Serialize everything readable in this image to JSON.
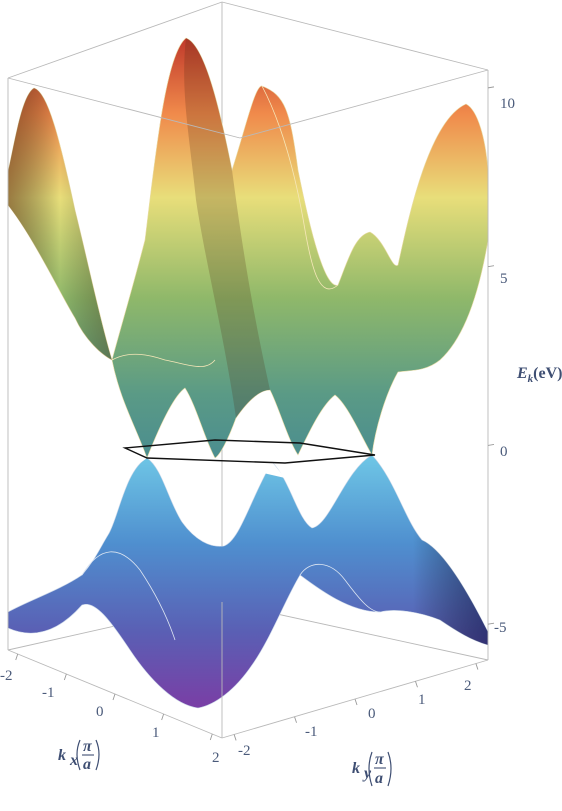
{
  "chart_data": {
    "type": "surface3d",
    "title": "",
    "bands": [
      {
        "colormap": "warm-yellow-green",
        "energy_range": [
          0,
          10.5
        ]
      },
      {
        "colormap": "blue-purple",
        "energy_range": [
          -6,
          0
        ]
      }
    ],
    "axes": {
      "x": {
        "label_var": "k",
        "label_sub": "x",
        "unit_num": "π",
        "unit_den": "a",
        "ticks": [
          "-2",
          "-1",
          "0",
          "1",
          "2"
        ],
        "range": [
          -2.2,
          2.2
        ]
      },
      "y": {
        "label_var": "k",
        "label_sub": "y",
        "unit_num": "π",
        "unit_den": "a",
        "ticks": [
          "-2",
          "-1",
          "0",
          "1",
          "2"
        ],
        "range": [
          -2.2,
          2.2
        ]
      },
      "z": {
        "label_var": "E",
        "label_sub": "k",
        "label_unit": "(eV)",
        "ticks": [
          "10",
          "5",
          "0",
          "-5"
        ],
        "range": [
          -6,
          10.5
        ]
      }
    },
    "annotations": {
      "zero_plane_contour": "hexagon at E = 0"
    },
    "box": true,
    "grid": false
  }
}
